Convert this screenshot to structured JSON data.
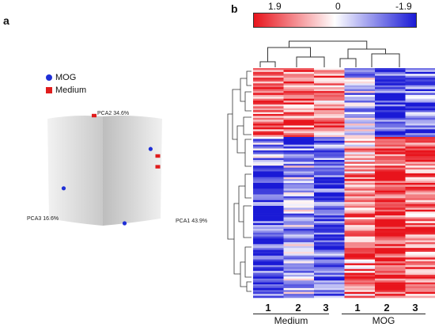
{
  "panels": {
    "a": "a",
    "b": "b"
  },
  "pca": {
    "legend": [
      {
        "label": "MOG",
        "color": "#1f2fd6",
        "shape": "circle"
      },
      {
        "label": "Medium",
        "color": "#e01c1c",
        "shape": "square"
      }
    ],
    "axes": {
      "pca1": "PCA1 43.9%",
      "pca2": "PCA2 34.6%",
      "pca3": "PCA3 16.6%"
    }
  },
  "heatmap": {
    "colorbar": {
      "max_label": "1.9",
      "mid_label": "0",
      "min_label": "-1.9",
      "high_color": "#e8141c",
      "mid_color": "#ffffff",
      "low_color": "#1a1ad6"
    },
    "columns": [
      "1",
      "2",
      "3",
      "1",
      "2",
      "3"
    ],
    "groups": [
      "Medium",
      "MOG"
    ]
  },
  "chart_data": [
    {
      "type": "scatter",
      "title": "",
      "series": [
        {
          "name": "MOG",
          "points": [
            [
              0.82,
              0.38
            ],
            [
              -0.75,
              -0.35
            ],
            [
              0.35,
              -1.0
            ]
          ]
        },
        {
          "name": "Medium",
          "points": [
            [
              -0.2,
              1.0
            ],
            [
              0.95,
              0.25
            ],
            [
              0.95,
              0.05
            ]
          ]
        }
      ],
      "axes": [
        "PCA1 43.9%",
        "PCA2 34.6%",
        "PCA3 16.6%"
      ],
      "legend": "top-left"
    },
    {
      "type": "heatmap",
      "title": "",
      "columns": [
        "1",
        "2",
        "3",
        "1",
        "2",
        "3"
      ],
      "groups": [
        "Medium",
        "MOG"
      ],
      "range": [
        -1.9,
        1.9
      ],
      "color_scale": [
        "#e8141c",
        "#ffffff",
        "#1a1ad6"
      ]
    }
  ]
}
